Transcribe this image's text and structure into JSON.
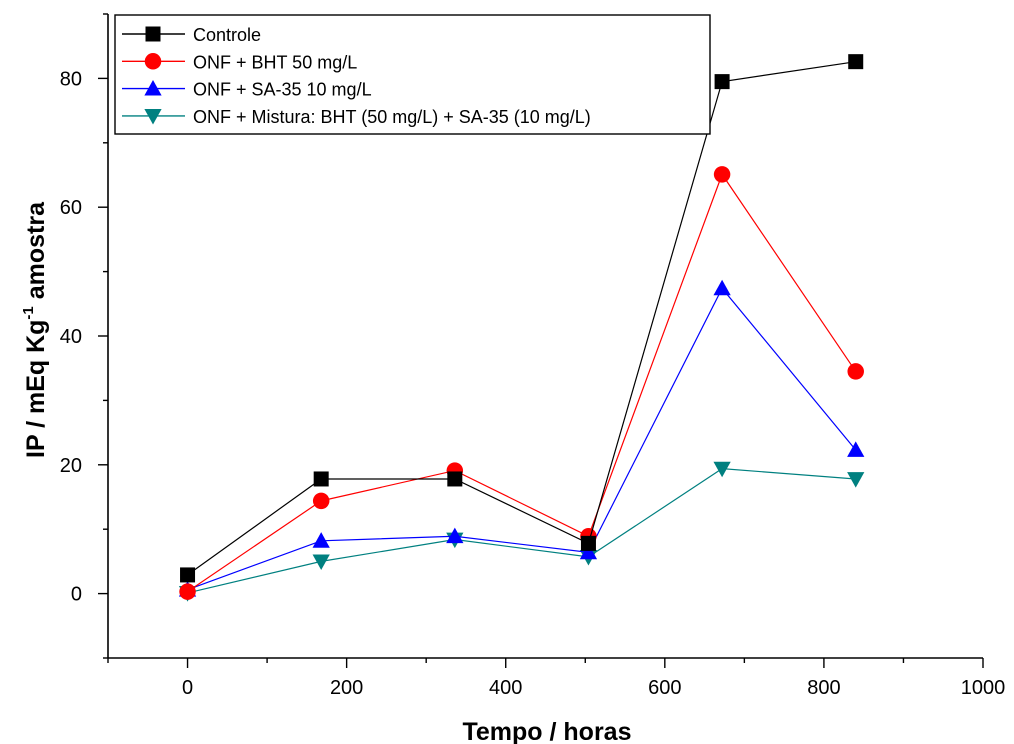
{
  "chart_data": {
    "type": "line",
    "title": "",
    "xlabel": "Tempo / horas",
    "ylabel_main": "IP / mEq Kg",
    "ylabel_sup": "-1",
    "ylabel_tail": " amostra",
    "xlim": [
      -100,
      1000
    ],
    "ylim": [
      -10,
      90
    ],
    "x_ticks": [
      0,
      200,
      400,
      600,
      800,
      1000
    ],
    "y_ticks": [
      0,
      20,
      40,
      60,
      80
    ],
    "x_tick_labels": [
      "0",
      "200",
      "400",
      "600",
      "800",
      "1000"
    ],
    "y_tick_labels": [
      "0",
      "20",
      "40",
      "60",
      "80"
    ],
    "x_minor_step": 100,
    "y_minor_step": 10,
    "grid": false,
    "legend_position": "top-left",
    "x": [
      0,
      168,
      336,
      504,
      672,
      840
    ],
    "series": [
      {
        "name": "Controle",
        "color": "#000000",
        "marker": "square",
        "values": [
          2.9,
          17.8,
          17.8,
          7.8,
          79.5,
          82.6
        ]
      },
      {
        "name": "ONF + BHT 50 mg/L",
        "color": "#ff0000",
        "marker": "circle",
        "values": [
          0.3,
          14.4,
          19.1,
          8.9,
          65.1,
          34.5
        ]
      },
      {
        "name": "ONF + SA-35 10 mg/L",
        "color": "#0000ff",
        "marker": "triangle-up",
        "values": [
          0.6,
          8.2,
          8.9,
          6.4,
          47.4,
          22.3
        ]
      },
      {
        "name": "ONF + Mistura: BHT (50 mg/L) + SA-35 (10 mg/L)",
        "color": "#008080",
        "marker": "triangle-down",
        "values": [
          0.1,
          5.0,
          8.4,
          5.7,
          19.4,
          17.8
        ]
      }
    ]
  }
}
